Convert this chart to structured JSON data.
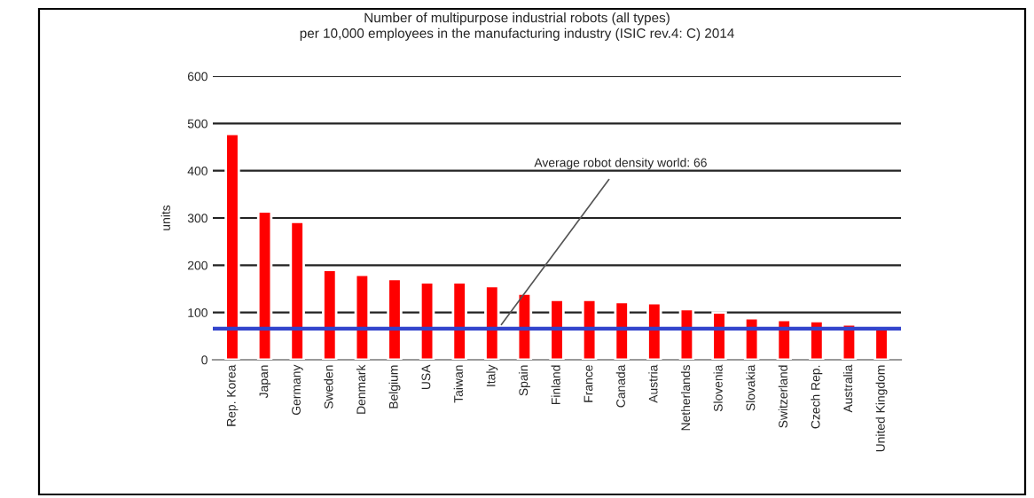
{
  "chart_data": {
    "type": "bar",
    "title": "Number of multipurpose industrial robots (all types)\nper 10,000 employees in the manufacturing industry (ISIC rev.4: C) 2014",
    "ylabel": "units",
    "categories": [
      "Rep. Korea",
      "Japan",
      "Germany",
      "Sweden",
      "Denmark",
      "Belgium",
      "USA",
      "Taiwan",
      "Italy",
      "Spain",
      "Finland",
      "France",
      "Canada",
      "Austria",
      "Netherlands",
      "Slovenia",
      "Slovakia",
      "Switzerland",
      "Czech Rep.",
      "Australia",
      "United Kingdom"
    ],
    "values": [
      478,
      314,
      292,
      190,
      180,
      171,
      164,
      164,
      156,
      140,
      127,
      127,
      122,
      120,
      107,
      100,
      88,
      84,
      82,
      75,
      71
    ],
    "color": "#ff0000",
    "ylim": [
      0,
      600
    ],
    "yticks": [
      0,
      100,
      200,
      300,
      400,
      500,
      600
    ],
    "grid": "y",
    "ref_lines": [
      {
        "axis": "y",
        "value": 66,
        "label": "Average robot density world: 66",
        "color": "#3344cc"
      }
    ]
  }
}
